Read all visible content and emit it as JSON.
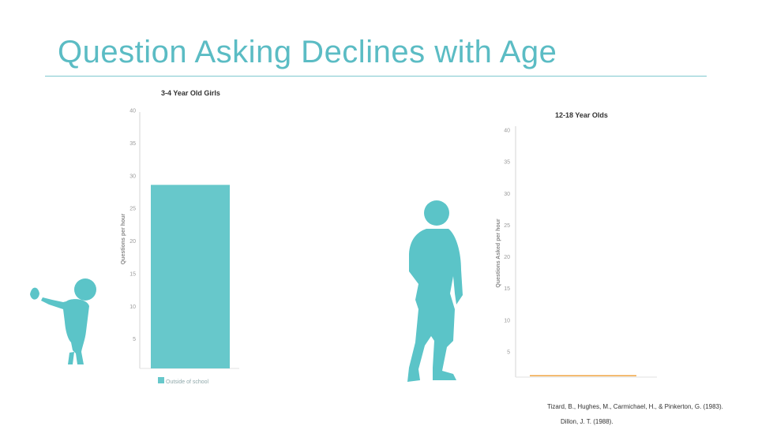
{
  "slide": {
    "title": "Question Asking Declines with Age",
    "citations": [
      "Tizard, B., Hughes, M., Carmichael, H., & Pinkerton, G. (1983).",
      "Dillon, J. T. (1988)."
    ]
  },
  "colors": {
    "accent": "#5bbcc4",
    "bar_teal": "#67c8cb",
    "bar_orange": "#f0a23c",
    "silhouette": "#5bc4c8"
  },
  "chart_data": [
    {
      "type": "bar",
      "title": "3-4 Year Old Girls",
      "ylabel": "Questions per hour",
      "ylim": [
        0,
        40
      ],
      "yticks": [
        "40",
        "35",
        "30",
        "25",
        "20",
        "15",
        "10",
        "5"
      ],
      "categories": [
        ""
      ],
      "series": [
        {
          "name": "Outside of school",
          "values": [
            28.6
          ],
          "color": "#67c8cb"
        }
      ],
      "legend": "bottom"
    },
    {
      "type": "bar",
      "title": "12-18 Year Olds",
      "ylabel": "Questions Asked per hour",
      "ylim": [
        0,
        40
      ],
      "yticks": [
        "40",
        "35",
        "30",
        "25",
        "20",
        "15",
        "10",
        "5"
      ],
      "categories": [
        ""
      ],
      "series": [
        {
          "values": [
            1.3
          ],
          "color": "#f0a23c"
        }
      ]
    }
  ]
}
